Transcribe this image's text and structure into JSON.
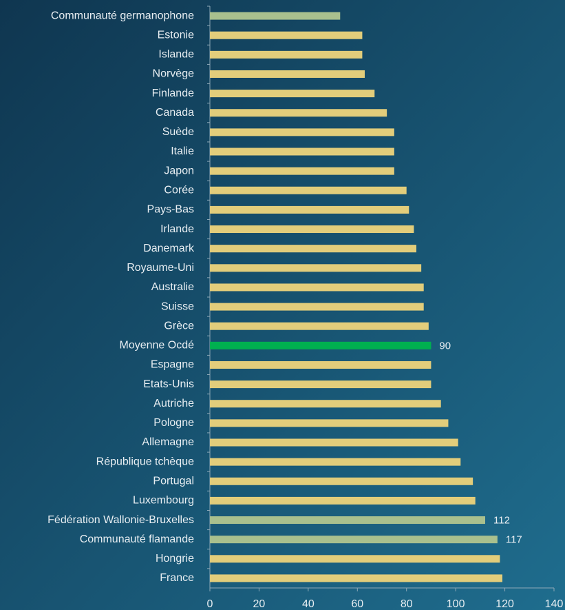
{
  "chart_data": {
    "type": "barh",
    "categories": [
      "Communauté germanophone",
      "Estonie",
      "Islande",
      "Norvège",
      "Finlande",
      "Canada",
      "Suède",
      "Italie",
      "Japon",
      "Corée",
      "Pays-Bas",
      "Irlande",
      "Danemark",
      "Royaume-Uni",
      "Australie",
      "Suisse",
      "Grèce",
      "Moyenne Ocdé",
      "Espagne",
      "Etats-Unis",
      "Autriche",
      "Pologne",
      "Allemagne",
      "République tchèque",
      "Portugal",
      "Luxembourg",
      "Fédération Wallonie-Bruxelles",
      "Communauté flamande",
      "Hongrie",
      "France"
    ],
    "values": [
      53,
      62,
      62,
      63,
      67,
      72,
      75,
      75,
      75,
      80,
      81,
      83,
      84,
      86,
      87,
      87,
      89,
      90,
      90,
      90,
      94,
      97,
      101,
      102,
      107,
      108,
      112,
      117,
      118,
      119
    ],
    "colors": [
      "#a9c08e",
      "#e2cd7b",
      "#e2cd7b",
      "#e2cd7b",
      "#e2cd7b",
      "#e2cd7b",
      "#e2cd7b",
      "#e2cd7b",
      "#e2cd7b",
      "#e2cd7b",
      "#e2cd7b",
      "#e2cd7b",
      "#e2cd7b",
      "#e2cd7b",
      "#e2cd7b",
      "#e2cd7b",
      "#e2cd7b",
      "#00b050",
      "#e2cd7b",
      "#e2cd7b",
      "#e2cd7b",
      "#e2cd7b",
      "#e2cd7b",
      "#e2cd7b",
      "#e2cd7b",
      "#e2cd7b",
      "#a9c08e",
      "#a9c08e",
      "#e2cd7b",
      "#e2cd7b"
    ],
    "labeled_bars": [
      17,
      26,
      27
    ],
    "xlim": [
      0,
      140
    ],
    "xticks": [
      0,
      20,
      40,
      60,
      80,
      100,
      120,
      140
    ],
    "grid": false
  }
}
